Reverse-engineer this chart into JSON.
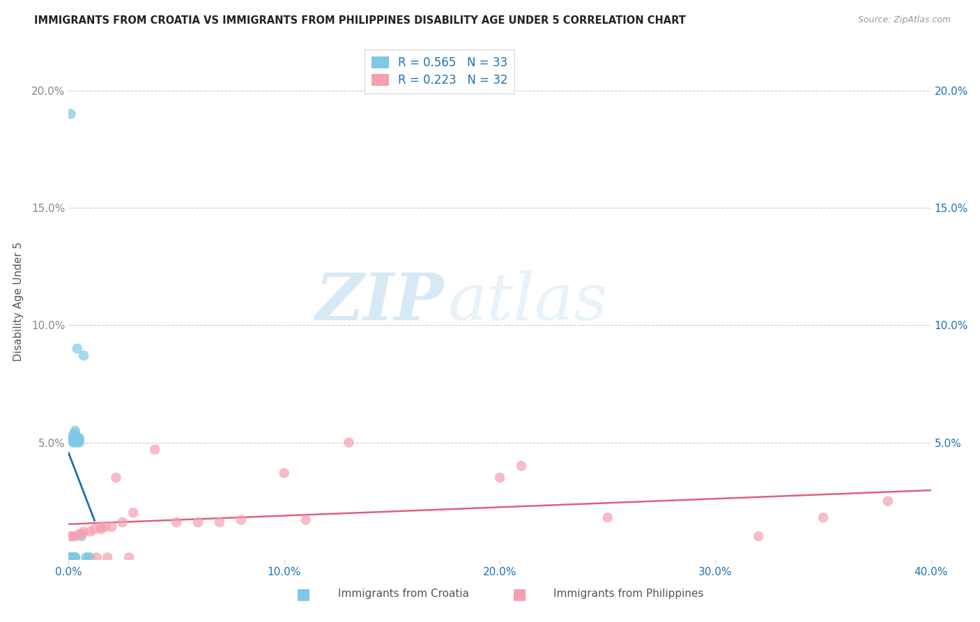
{
  "title": "IMMIGRANTS FROM CROATIA VS IMMIGRANTS FROM PHILIPPINES DISABILITY AGE UNDER 5 CORRELATION CHART",
  "source": "Source: ZipAtlas.com",
  "ylabel": "Disability Age Under 5",
  "xlim": [
    0.0,
    0.4
  ],
  "ylim": [
    0.0,
    0.22
  ],
  "xticks": [
    0.0,
    0.1,
    0.2,
    0.3,
    0.4
  ],
  "xticklabels": [
    "0.0%",
    "10.0%",
    "20.0%",
    "30.0%",
    "40.0%"
  ],
  "yticks": [
    0.0,
    0.05,
    0.1,
    0.15,
    0.2
  ],
  "yticklabels_left": [
    "",
    "5.0%",
    "10.0%",
    "15.0%",
    "20.0%"
  ],
  "yticklabels_right": [
    "",
    "5.0%",
    "10.0%",
    "15.0%",
    "20.0%"
  ],
  "croatia_color": "#7ec8e3",
  "philippines_color": "#f4a0b0",
  "croatia_line_color": "#1a6faf",
  "philippines_line_color": "#e0607a",
  "croatia_R": 0.565,
  "croatia_N": 33,
  "philippines_R": 0.223,
  "philippines_N": 32,
  "watermark_zip": "ZIP",
  "watermark_atlas": "atlas",
  "croatia_x": [
    0.001,
    0.001,
    0.001,
    0.001,
    0.002,
    0.002,
    0.002,
    0.002,
    0.002,
    0.002,
    0.002,
    0.003,
    0.003,
    0.003,
    0.003,
    0.003,
    0.003,
    0.003,
    0.003,
    0.003,
    0.003,
    0.004,
    0.004,
    0.004,
    0.004,
    0.005,
    0.005,
    0.005,
    0.006,
    0.007,
    0.008,
    0.009,
    0.01
  ],
  "croatia_y": [
    0.001,
    0.001,
    0.001,
    0.19,
    0.001,
    0.001,
    0.001,
    0.05,
    0.051,
    0.052,
    0.053,
    0.001,
    0.001,
    0.001,
    0.001,
    0.05,
    0.051,
    0.052,
    0.053,
    0.054,
    0.055,
    0.05,
    0.051,
    0.052,
    0.09,
    0.05,
    0.051,
    0.052,
    0.01,
    0.087,
    0.001,
    0.001,
    0.001
  ],
  "philippines_x": [
    0.001,
    0.002,
    0.003,
    0.005,
    0.006,
    0.007,
    0.01,
    0.012,
    0.013,
    0.015,
    0.015,
    0.017,
    0.018,
    0.02,
    0.022,
    0.025,
    0.028,
    0.03,
    0.04,
    0.05,
    0.06,
    0.07,
    0.08,
    0.1,
    0.11,
    0.13,
    0.2,
    0.21,
    0.25,
    0.32,
    0.35,
    0.38
  ],
  "philippines_y": [
    0.01,
    0.01,
    0.01,
    0.011,
    0.011,
    0.012,
    0.012,
    0.013,
    0.001,
    0.013,
    0.014,
    0.014,
    0.001,
    0.014,
    0.035,
    0.016,
    0.001,
    0.02,
    0.047,
    0.016,
    0.016,
    0.016,
    0.017,
    0.037,
    0.017,
    0.05,
    0.035,
    0.04,
    0.018,
    0.01,
    0.018,
    0.025
  ]
}
